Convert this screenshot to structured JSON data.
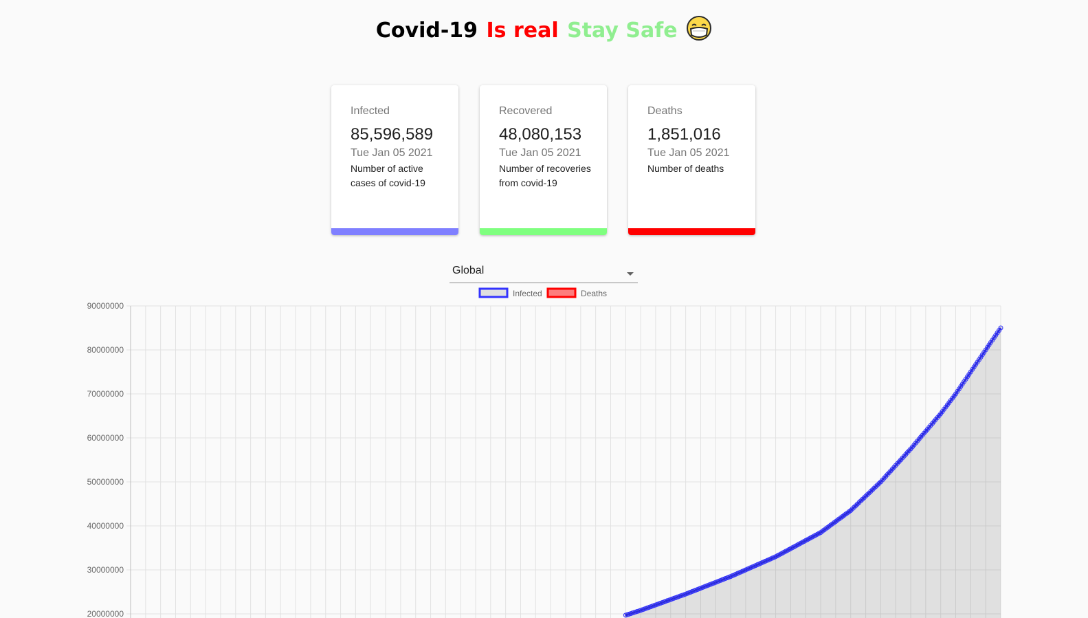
{
  "header": {
    "part1": "Covid-19",
    "part2": "Is real",
    "part3": "Stay Safe",
    "emoji_icon": "face-with-mask-icon",
    "colors": {
      "part1": "#000000",
      "part2": "#ff0000",
      "part3": "#90ee90"
    }
  },
  "cards": [
    {
      "label": "Infected",
      "value": "85,596,589",
      "date": "Tue Jan 05 2021",
      "description": "Number of active cases of covid-19",
      "color": "#7f7fff"
    },
    {
      "label": "Recovered",
      "value": "48,080,153",
      "date": "Tue Jan 05 2021",
      "description": "Number of recoveries from covid-19",
      "color": "#7fff7f"
    },
    {
      "label": "Deaths",
      "value": "1,851,016",
      "date": "Tue Jan 05 2021",
      "description": "Number of deaths",
      "color": "#ff0000"
    }
  ],
  "country_select": {
    "selected": "Global"
  },
  "chart_data": {
    "type": "line",
    "title": "",
    "xlabel": "",
    "ylabel": "",
    "ylim": [
      20000000,
      90000000
    ],
    "y_ticks": [
      "90000000",
      "80000000",
      "70000000",
      "60000000",
      "50000000",
      "40000000",
      "30000000",
      "20000000"
    ],
    "legend": {
      "position": "top",
      "entries": [
        "Infected",
        "Deaths"
      ]
    },
    "series": [
      {
        "name": "Infected",
        "color": "#3333ff",
        "fill": "rgba(0,0,0,0.1)",
        "x_index_range": [
          0,
          58
        ],
        "key_points": [
          {
            "i": 33,
            "y": 19700000
          },
          {
            "i": 34,
            "y": 20800000
          },
          {
            "i": 37,
            "y": 24500000
          },
          {
            "i": 40,
            "y": 28500000
          },
          {
            "i": 43,
            "y": 33000000
          },
          {
            "i": 46,
            "y": 38500000
          },
          {
            "i": 48,
            "y": 43500000
          },
          {
            "i": 50,
            "y": 50000000
          },
          {
            "i": 52,
            "y": 57500000
          },
          {
            "i": 54,
            "y": 65500000
          },
          {
            "i": 55,
            "y": 70000000
          },
          {
            "i": 56,
            "y": 75000000
          },
          {
            "i": 57,
            "y": 80000000
          },
          {
            "i": 58,
            "y": 85000000
          }
        ]
      },
      {
        "name": "Deaths",
        "color": "#ff0000",
        "fill": "rgba(255,0,0,0.5)",
        "key_points": []
      }
    ]
  }
}
